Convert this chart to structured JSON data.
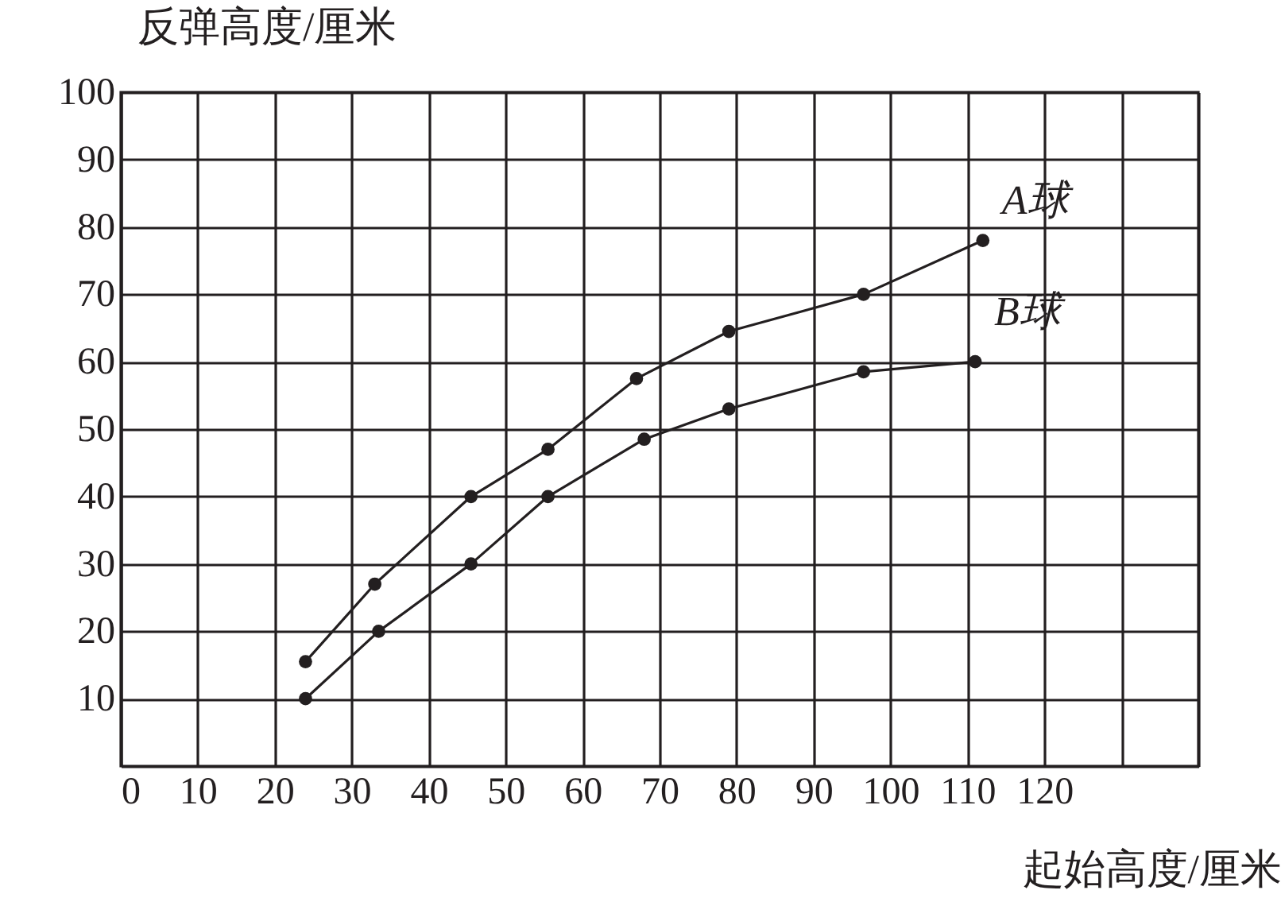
{
  "chart_data": {
    "type": "line",
    "xlabel": "起始高度/厘米",
    "ylabel": "反弹高度/厘米",
    "xlim": [
      0,
      140
    ],
    "xticks": [
      0,
      10,
      20,
      30,
      40,
      50,
      60,
      70,
      80,
      90,
      100,
      110,
      120,
      {
        "value": 130,
        "label": null
      },
      {
        "value": 140,
        "label": null
      }
    ],
    "ylim": [
      0,
      100
    ],
    "yticks": [
      10,
      20,
      30,
      40,
      50,
      60,
      70,
      80,
      90,
      100
    ],
    "grid": true,
    "marker": "circle",
    "line_style": "solid",
    "series": [
      {
        "name": "A球",
        "color": "#231f20",
        "x": [
          24,
          33,
          45.5,
          55.5,
          67,
          79,
          96.5,
          112
        ],
        "values": [
          15.5,
          27,
          40,
          47,
          57.5,
          64.5,
          70,
          78
        ]
      },
      {
        "name": "B球",
        "color": "#231f20",
        "x": [
          24,
          33.5,
          45.5,
          55.5,
          68,
          79,
          96.5,
          111
        ],
        "values": [
          10,
          20,
          30,
          40,
          48.5,
          53,
          58.5,
          60
        ]
      }
    ]
  }
}
